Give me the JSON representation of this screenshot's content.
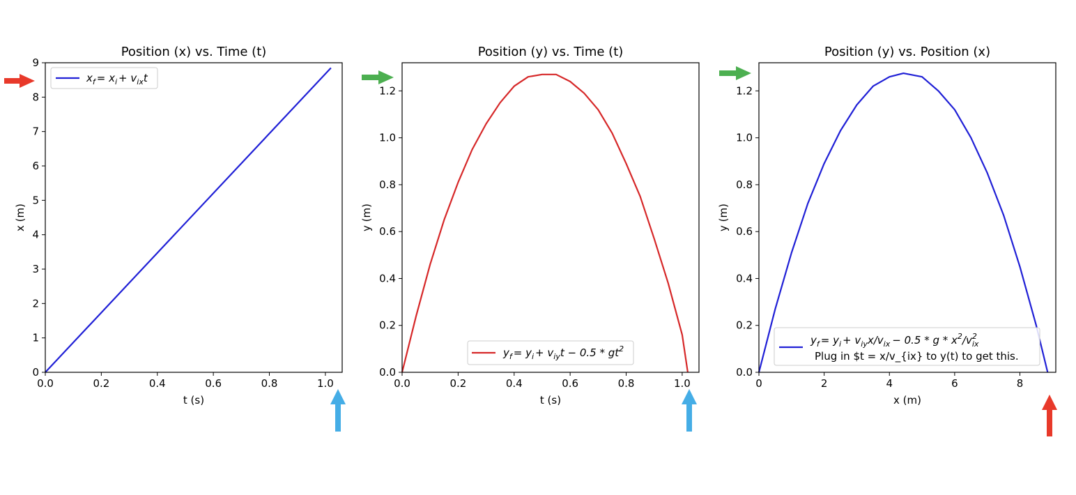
{
  "colors": {
    "blue_line": "#1f1fd6",
    "red_line": "#d62728",
    "red_arrow": "#e8392a",
    "green_arrow": "#4caf50",
    "cyan_arrow": "#45ade6"
  },
  "chart_data": [
    {
      "type": "line",
      "title": "Position (x) vs. Time (t)",
      "xlabel": "t (s)",
      "ylabel": "x (m)",
      "xlim": [
        0,
        1.06
      ],
      "ylim": [
        0,
        9
      ],
      "xticks": [
        0,
        0.2,
        0.4,
        0.6,
        0.8,
        1.0
      ],
      "xtick_labels": [
        "0.0",
        "0.2",
        "0.4",
        "0.6",
        "0.8",
        "1.0"
      ],
      "yticks": [
        0,
        1,
        2,
        3,
        4,
        5,
        6,
        7,
        8,
        9
      ],
      "ytick_labels": [
        "0",
        "1",
        "2",
        "3",
        "4",
        "5",
        "6",
        "7",
        "8",
        "9"
      ],
      "legend_location": "upper left",
      "series": [
        {
          "name": "x_f = x_i + v_ix t",
          "color": "#1f1fd6",
          "x": [
            0.0,
            1.02
          ],
          "y": [
            0.0,
            8.85
          ]
        }
      ]
    },
    {
      "type": "line",
      "title": "Position (y) vs. Time (t)",
      "xlabel": "t (s)",
      "ylabel": "y (m)",
      "xlim": [
        0,
        1.06
      ],
      "ylim": [
        0,
        1.32
      ],
      "xticks": [
        0,
        0.2,
        0.4,
        0.6,
        0.8,
        1.0
      ],
      "xtick_labels": [
        "0.0",
        "0.2",
        "0.4",
        "0.6",
        "0.8",
        "1.0"
      ],
      "yticks": [
        0,
        0.2,
        0.4,
        0.6,
        0.8,
        1.0,
        1.2
      ],
      "ytick_labels": [
        "0.0",
        "0.2",
        "0.4",
        "0.6",
        "0.8",
        "1.0",
        "1.2"
      ],
      "legend_location": "lower center",
      "series": [
        {
          "name": "y_f = y_i + v_iy t - 0.5 * g t^2",
          "color": "#d62728",
          "x": [
            0.0,
            0.05,
            0.1,
            0.15,
            0.2,
            0.25,
            0.3,
            0.35,
            0.4,
            0.45,
            0.5,
            0.51,
            0.55,
            0.6,
            0.65,
            0.7,
            0.75,
            0.8,
            0.85,
            0.9,
            0.95,
            1.0,
            1.02
          ],
          "y": [
            0.0,
            0.24,
            0.46,
            0.65,
            0.81,
            0.95,
            1.06,
            1.15,
            1.22,
            1.26,
            1.27,
            1.27,
            1.27,
            1.24,
            1.19,
            1.12,
            1.02,
            0.89,
            0.75,
            0.57,
            0.38,
            0.16,
            0.0
          ]
        }
      ]
    },
    {
      "type": "line",
      "title": "Position (y) vs. Position (x)",
      "xlabel": "x (m)",
      "ylabel": "y (m)",
      "xlim": [
        0,
        9.1
      ],
      "ylim": [
        0,
        1.32
      ],
      "xticks": [
        0,
        2,
        4,
        6,
        8
      ],
      "xtick_labels": [
        "0",
        "2",
        "4",
        "6",
        "8"
      ],
      "yticks": [
        0,
        0.2,
        0.4,
        0.6,
        0.8,
        1.0,
        1.2
      ],
      "ytick_labels": [
        "0.0",
        "0.2",
        "0.4",
        "0.6",
        "0.8",
        "1.0",
        "1.2"
      ],
      "legend_location": "lower center",
      "series": [
        {
          "name": "y_f = y_i + v_iy x / v_ix - 0.5 * g * x^2 / v_ix^2",
          "name_line2": "Plug in $t = x/v_{ix} to y(t) to get this.",
          "color": "#1f1fd6",
          "x": [
            0.0,
            0.5,
            1.0,
            1.5,
            2.0,
            2.5,
            3.0,
            3.5,
            4.0,
            4.43,
            5.0,
            5.5,
            6.0,
            6.5,
            7.0,
            7.5,
            8.0,
            8.5,
            8.85
          ],
          "y": [
            0.0,
            0.27,
            0.51,
            0.72,
            0.89,
            1.03,
            1.14,
            1.22,
            1.26,
            1.275,
            1.26,
            1.2,
            1.12,
            1.0,
            0.85,
            0.67,
            0.45,
            0.2,
            0.0
          ]
        }
      ]
    }
  ],
  "legends": {
    "chart1_main": "x",
    "chart1_sub_f": "f",
    "chart1_eq": "= x",
    "chart1_sub_i": "i",
    "chart1_plus": "+ v",
    "chart1_sub_ix": "ix",
    "chart1_t": "t",
    "chart2_y": "y",
    "chart2_sub_f": "f",
    "chart2_eq": "= y",
    "chart2_sub_i": "i",
    "chart2_plus": "+ v",
    "chart2_sub_iy": "iy",
    "chart2_rest": "t − 0.5 * gt",
    "chart2_sup": "2",
    "chart3_y": "y",
    "chart3_sub_f": "f",
    "chart3_eq": "= y",
    "chart3_sub_i": "i",
    "chart3_plus": "+ v",
    "chart3_sub_iy": "iy",
    "chart3_x": "x/v",
    "chart3_sub_ix": "ix",
    "chart3_rest": "− 0.5 * g * x",
    "chart3_sup2": "2",
    "chart3_div": "/v",
    "chart3_sup2b": "2",
    "chart3_sub_ixb": "ix",
    "chart3_line2": "Plug in $t = x/v_{ix} to y(t) to get this."
  },
  "arrows": [
    {
      "name": "red-arrow-chart1-y",
      "color": "red",
      "direction": "right"
    },
    {
      "name": "cyan-arrow-chart1-x",
      "color": "cyan",
      "direction": "up"
    },
    {
      "name": "green-arrow-chart2-y",
      "color": "green",
      "direction": "right"
    },
    {
      "name": "cyan-arrow-chart2-x",
      "color": "cyan",
      "direction": "up"
    },
    {
      "name": "green-arrow-chart3-y",
      "color": "green",
      "direction": "right"
    },
    {
      "name": "red-arrow-chart3-x",
      "color": "red",
      "direction": "up"
    }
  ]
}
